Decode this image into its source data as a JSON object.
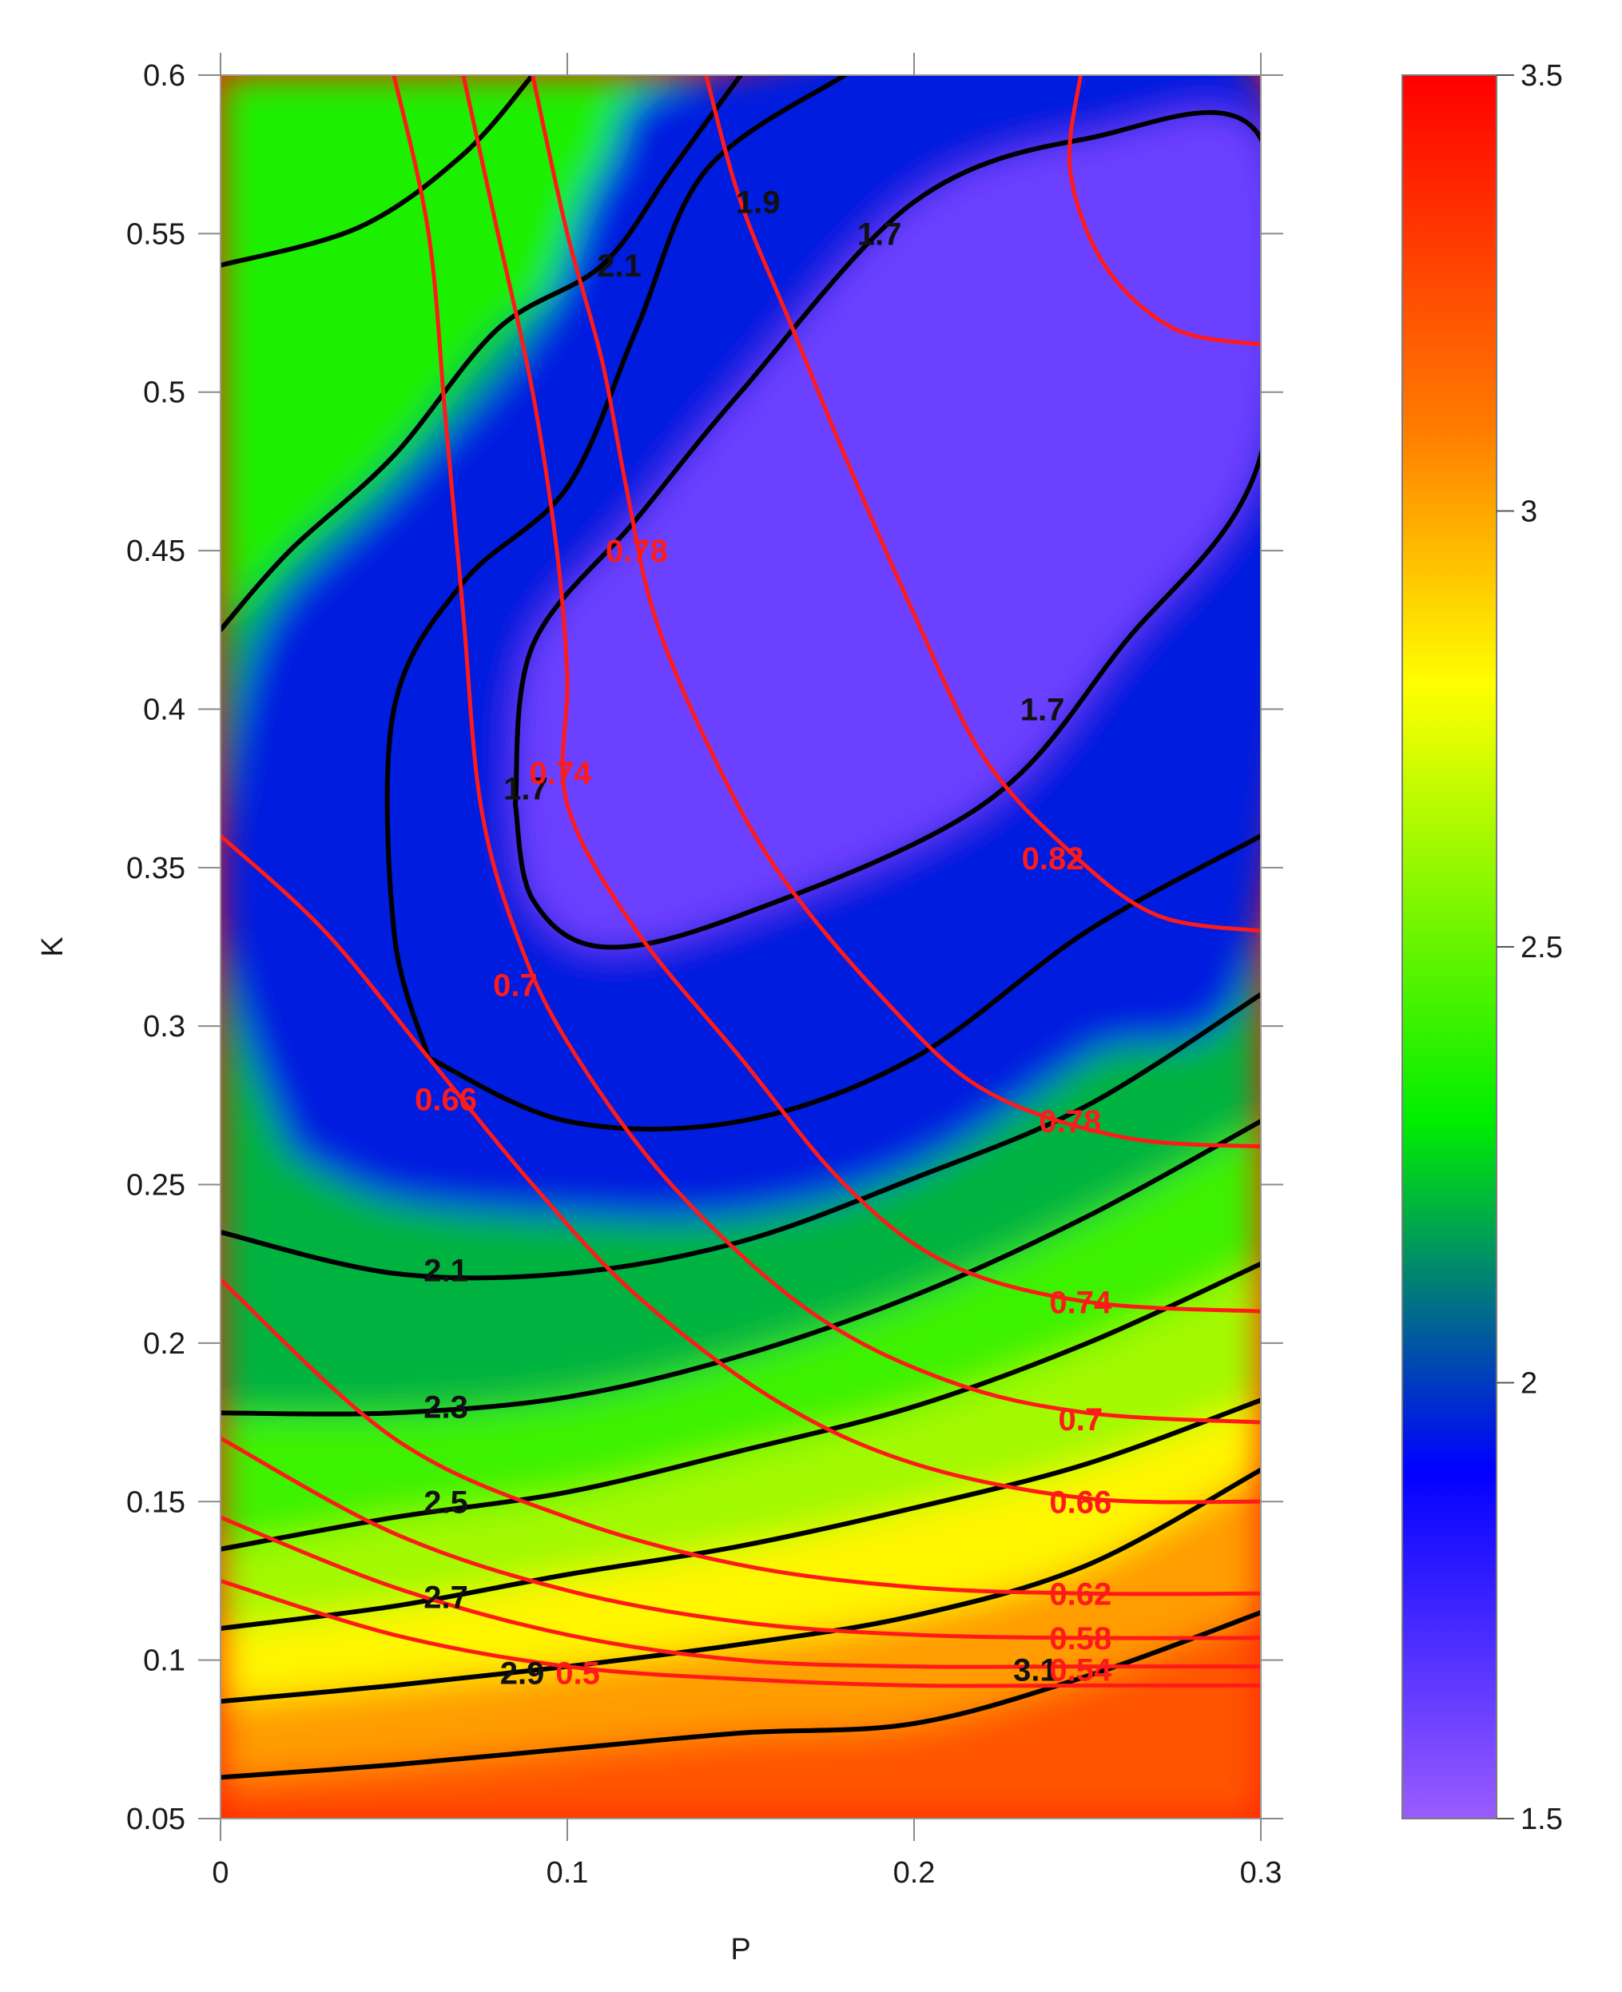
{
  "chart_data": {
    "type": "contour",
    "title": "",
    "xlabel": "P",
    "ylabel": "K",
    "xlim": [
      0,
      0.3
    ],
    "ylim": [
      0.05,
      0.6
    ],
    "x_ticks": [
      "0",
      "0.1",
      "0.2",
      "0.3"
    ],
    "y_ticks": [
      "0.05",
      "0.1",
      "0.15",
      "0.2",
      "0.25",
      "0.3",
      "0.35",
      "0.4",
      "0.45",
      "0.5",
      "0.55",
      "0.6"
    ],
    "colorbar": {
      "range": [
        1.5,
        3.5
      ],
      "ticks": [
        "1.5",
        "2",
        "2.5",
        "3",
        "3.5"
      ],
      "colormap": [
        {
          "value": 1.5,
          "color": "#9a5cff"
        },
        {
          "value": 1.9,
          "color": "#0000ff"
        },
        {
          "value": 2.3,
          "color": "#00ee00"
        },
        {
          "value": 2.8,
          "color": "#ffff00"
        },
        {
          "value": 3.1,
          "color": "#ff7a00"
        },
        {
          "value": 3.5,
          "color": "#ff0000"
        }
      ]
    },
    "field_contours": {
      "color": "#000000",
      "levels": [
        {
          "value": 1.7,
          "labels": [
            {
              "text": "1.7",
              "x": 0.19,
              "y": 0.55
            },
            {
              "text": "1.7",
              "x": 0.237,
              "y": 0.4
            },
            {
              "text": "1.7",
              "x": 0.088,
              "y": 0.375
            }
          ],
          "points": [
            [
              0.085,
              0.37
            ],
            [
              0.09,
              0.42
            ],
            [
              0.12,
              0.46
            ],
            [
              0.15,
              0.5
            ],
            [
              0.2,
              0.56
            ],
            [
              0.25,
              0.58
            ],
            [
              0.3,
              0.58
            ],
            [
              0.3,
              0.48
            ],
            [
              0.26,
              0.42
            ],
            [
              0.22,
              0.37
            ],
            [
              0.15,
              0.335
            ],
            [
              0.11,
              0.325
            ],
            [
              0.09,
              0.34
            ],
            [
              0.085,
              0.37
            ]
          ]
        },
        {
          "value": 1.9,
          "labels": [
            {
              "text": "1.9",
              "x": 0.155,
              "y": 0.56
            }
          ],
          "points": [
            [
              0.06,
              0.29
            ],
            [
              0.05,
              0.33
            ],
            [
              0.05,
              0.4
            ],
            [
              0.07,
              0.44
            ],
            [
              0.1,
              0.47
            ],
            [
              0.12,
              0.52
            ],
            [
              0.14,
              0.57
            ],
            [
              0.18,
              0.6
            ]
          ]
        },
        {
          "value": 1.9,
          "labels": [],
          "points": [
            [
              0.06,
              0.29
            ],
            [
              0.1,
              0.27
            ],
            [
              0.15,
              0.27
            ],
            [
              0.2,
              0.29
            ],
            [
              0.25,
              0.33
            ],
            [
              0.3,
              0.36
            ]
          ]
        },
        {
          "value": 2.1,
          "labels": [
            {
              "text": "2.1",
              "x": 0.115,
              "y": 0.54
            },
            {
              "text": "2.1",
              "x": 0.065,
              "y": 0.223
            }
          ],
          "points": [
            [
              0.0,
              0.425
            ],
            [
              0.02,
              0.45
            ],
            [
              0.05,
              0.48
            ],
            [
              0.08,
              0.52
            ],
            [
              0.11,
              0.54
            ],
            [
              0.13,
              0.57
            ],
            [
              0.15,
              0.6
            ]
          ]
        },
        {
          "value": 2.1,
          "labels": [],
          "points": [
            [
              0.0,
              0.235
            ],
            [
              0.05,
              0.222
            ],
            [
              0.1,
              0.222
            ],
            [
              0.15,
              0.232
            ],
            [
              0.2,
              0.252
            ],
            [
              0.25,
              0.275
            ],
            [
              0.3,
              0.31
            ]
          ]
        },
        {
          "value": 2.1,
          "labels": [],
          "points": [
            [
              0.0,
              0.54
            ],
            [
              0.04,
              0.552
            ],
            [
              0.07,
              0.575
            ],
            [
              0.09,
              0.6
            ]
          ]
        },
        {
          "value": 2.3,
          "labels": [
            {
              "text": "2.3",
              "x": 0.065,
              "y": 0.18
            }
          ],
          "points": [
            [
              0.0,
              0.178
            ],
            [
              0.05,
              0.178
            ],
            [
              0.1,
              0.183
            ],
            [
              0.15,
              0.196
            ],
            [
              0.2,
              0.215
            ],
            [
              0.25,
              0.24
            ],
            [
              0.3,
              0.27
            ]
          ]
        },
        {
          "value": 2.5,
          "labels": [
            {
              "text": "2.5",
              "x": 0.065,
              "y": 0.15
            }
          ],
          "points": [
            [
              0.0,
              0.135
            ],
            [
              0.05,
              0.145
            ],
            [
              0.1,
              0.153
            ],
            [
              0.15,
              0.166
            ],
            [
              0.2,
              0.18
            ],
            [
              0.25,
              0.2
            ],
            [
              0.3,
              0.225
            ]
          ]
        },
        {
          "value": 2.7,
          "labels": [
            {
              "text": "2.7",
              "x": 0.065,
              "y": 0.12
            }
          ],
          "points": [
            [
              0.0,
              0.11
            ],
            [
              0.05,
              0.117
            ],
            [
              0.1,
              0.127
            ],
            [
              0.15,
              0.136
            ],
            [
              0.2,
              0.148
            ],
            [
              0.25,
              0.162
            ],
            [
              0.3,
              0.182
            ]
          ]
        },
        {
          "value": 2.9,
          "labels": [
            {
              "text": "2.9",
              "x": 0.087,
              "y": 0.096
            }
          ],
          "points": [
            [
              0.0,
              0.087
            ],
            [
              0.05,
              0.092
            ],
            [
              0.1,
              0.098
            ],
            [
              0.15,
              0.105
            ],
            [
              0.2,
              0.114
            ],
            [
              0.25,
              0.13
            ],
            [
              0.3,
              0.16
            ]
          ]
        },
        {
          "value": 3.1,
          "labels": [
            {
              "text": "3.1",
              "x": 0.235,
              "y": 0.097
            }
          ],
          "points": [
            [
              0.0,
              0.063
            ],
            [
              0.05,
              0.067
            ],
            [
              0.1,
              0.072
            ],
            [
              0.15,
              0.077
            ],
            [
              0.2,
              0.08
            ],
            [
              0.25,
              0.095
            ],
            [
              0.3,
              0.115
            ]
          ]
        }
      ]
    },
    "secondary_contours": {
      "color": "#ff1a1a",
      "levels": [
        {
          "value": 0.5,
          "labels": [
            {
              "text": "0.5",
              "x": 0.103,
              "y": 0.096
            }
          ],
          "points": [
            [
              0.0,
              0.125
            ],
            [
              0.05,
              0.108
            ],
            [
              0.1,
              0.098
            ],
            [
              0.15,
              0.094
            ],
            [
              0.2,
              0.092
            ],
            [
              0.25,
              0.092
            ],
            [
              0.3,
              0.092
            ]
          ]
        },
        {
          "value": 0.54,
          "labels": [
            {
              "text": "0.54",
              "x": 0.248,
              "y": 0.097
            }
          ],
          "points": [
            [
              0.0,
              0.145
            ],
            [
              0.05,
              0.123
            ],
            [
              0.1,
              0.108
            ],
            [
              0.15,
              0.1
            ],
            [
              0.2,
              0.098
            ],
            [
              0.25,
              0.098
            ],
            [
              0.3,
              0.098
            ]
          ]
        },
        {
          "value": 0.58,
          "labels": [
            {
              "text": "0.58",
              "x": 0.248,
              "y": 0.107
            }
          ],
          "points": [
            [
              0.0,
              0.17
            ],
            [
              0.05,
              0.14
            ],
            [
              0.1,
              0.122
            ],
            [
              0.15,
              0.112
            ],
            [
              0.2,
              0.108
            ],
            [
              0.25,
              0.107
            ],
            [
              0.3,
              0.107
            ]
          ]
        },
        {
          "value": 0.62,
          "labels": [
            {
              "text": "0.62",
              "x": 0.248,
              "y": 0.121
            }
          ],
          "points": [
            [
              0.0,
              0.22
            ],
            [
              0.05,
              0.17
            ],
            [
              0.1,
              0.145
            ],
            [
              0.15,
              0.13
            ],
            [
              0.2,
              0.123
            ],
            [
              0.25,
              0.121
            ],
            [
              0.3,
              0.121
            ]
          ]
        },
        {
          "value": 0.66,
          "labels": [
            {
              "text": "0.66",
              "x": 0.065,
              "y": 0.277
            },
            {
              "text": "0.66",
              "x": 0.248,
              "y": 0.15
            }
          ],
          "points": [
            [
              0.0,
              0.36
            ],
            [
              0.03,
              0.33
            ],
            [
              0.06,
              0.29
            ],
            [
              0.09,
              0.25
            ],
            [
              0.12,
              0.215
            ],
            [
              0.16,
              0.182
            ],
            [
              0.2,
              0.162
            ],
            [
              0.25,
              0.151
            ],
            [
              0.3,
              0.15
            ]
          ]
        },
        {
          "value": 0.7,
          "labels": [
            {
              "text": "0.7",
              "x": 0.085,
              "y": 0.313
            },
            {
              "text": "0.7",
              "x": 0.248,
              "y": 0.176
            }
          ],
          "points": [
            [
              0.05,
              0.6
            ],
            [
              0.06,
              0.55
            ],
            [
              0.065,
              0.49
            ],
            [
              0.07,
              0.43
            ],
            [
              0.075,
              0.37
            ],
            [
              0.085,
              0.33
            ],
            [
              0.1,
              0.295
            ],
            [
              0.13,
              0.25
            ],
            [
              0.17,
              0.21
            ],
            [
              0.21,
              0.188
            ],
            [
              0.25,
              0.178
            ],
            [
              0.3,
              0.175
            ]
          ]
        },
        {
          "value": 0.74,
          "labels": [
            {
              "text": "0.74",
              "x": 0.098,
              "y": 0.38
            },
            {
              "text": "0.74",
              "x": 0.248,
              "y": 0.213
            }
          ],
          "points": [
            [
              0.07,
              0.6
            ],
            [
              0.08,
              0.55
            ],
            [
              0.09,
              0.5
            ],
            [
              0.097,
              0.45
            ],
            [
              0.1,
              0.41
            ],
            [
              0.1,
              0.37
            ],
            [
              0.12,
              0.33
            ],
            [
              0.15,
              0.29
            ],
            [
              0.18,
              0.25
            ],
            [
              0.21,
              0.225
            ],
            [
              0.25,
              0.213
            ],
            [
              0.3,
              0.21
            ]
          ]
        },
        {
          "value": 0.78,
          "labels": [
            {
              "text": "0.78",
              "x": 0.12,
              "y": 0.45
            },
            {
              "text": "0.78",
              "x": 0.245,
              "y": 0.27
            }
          ],
          "points": [
            [
              0.09,
              0.6
            ],
            [
              0.1,
              0.55
            ],
            [
              0.11,
              0.51
            ],
            [
              0.117,
              0.47
            ],
            [
              0.125,
              0.43
            ],
            [
              0.14,
              0.39
            ],
            [
              0.16,
              0.35
            ],
            [
              0.19,
              0.31
            ],
            [
              0.22,
              0.28
            ],
            [
              0.26,
              0.265
            ],
            [
              0.3,
              0.262
            ]
          ]
        },
        {
          "value": 0.82,
          "labels": [
            {
              "text": "0.82",
              "x": 0.24,
              "y": 0.353
            }
          ],
          "points": [
            [
              0.14,
              0.6
            ],
            [
              0.15,
              0.56
            ],
            [
              0.165,
              0.52
            ],
            [
              0.18,
              0.48
            ],
            [
              0.2,
              0.43
            ],
            [
              0.22,
              0.385
            ],
            [
              0.245,
              0.355
            ],
            [
              0.27,
              0.335
            ],
            [
              0.3,
              0.33
            ]
          ]
        },
        {
          "value": null,
          "labels": [],
          "points": [
            [
              0.248,
              0.6
            ],
            [
              0.245,
              0.57
            ],
            [
              0.255,
              0.54
            ],
            [
              0.275,
              0.52
            ],
            [
              0.3,
              0.515
            ]
          ]
        }
      ]
    },
    "grid": false,
    "legend": "colorbar-right"
  }
}
